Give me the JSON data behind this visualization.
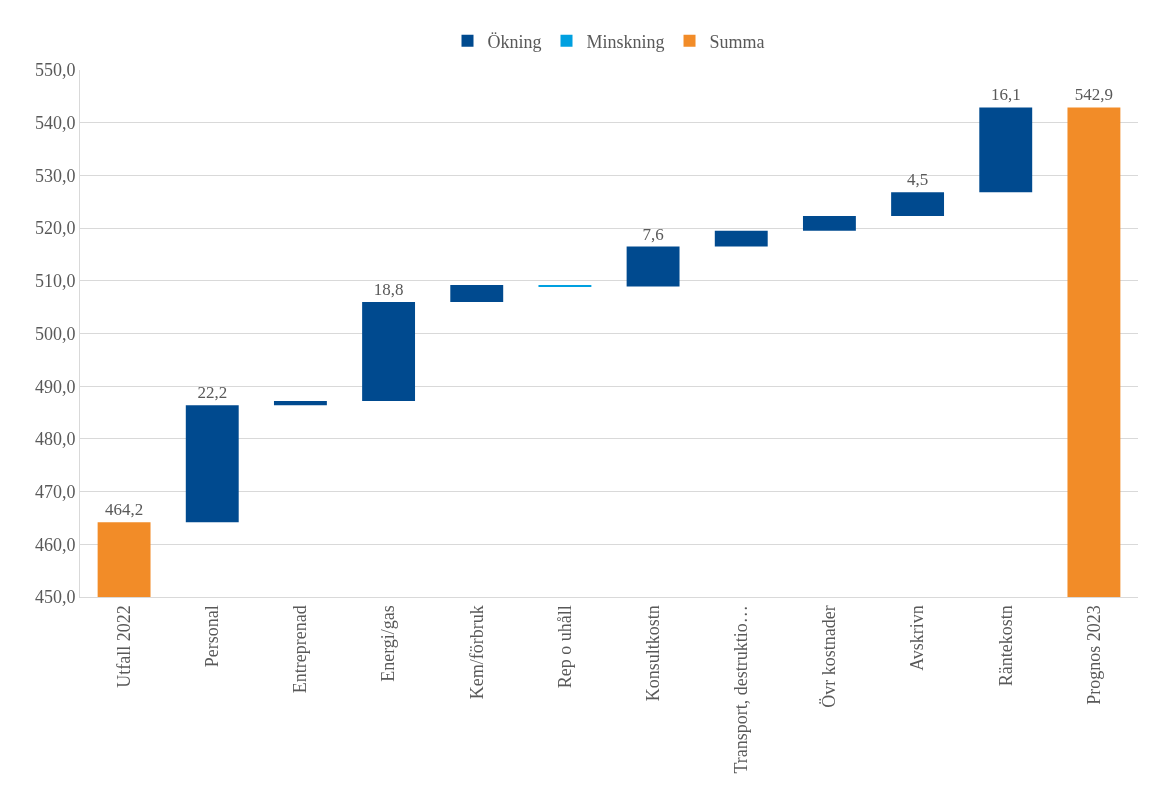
{
  "chart_data": {
    "type": "bar",
    "categories": [
      "Utfall 2022",
      "Personal",
      "Entreprenad",
      "Energi/gas",
      "Kem/förbruk",
      "Rep o uhåll",
      "Konsultkostn",
      "Transport, destruktio…",
      "Övr kostnader",
      "Avskrivn",
      "Räntekostn",
      "Prognos 2023"
    ],
    "series": [
      {
        "name": "Ökning",
        "color": "#004a8f",
        "base": [
          null,
          464.2,
          486.4,
          487.2,
          506.0,
          null,
          508.9,
          516.5,
          519.5,
          522.3,
          526.8,
          null
        ],
        "values": [
          null,
          22.2,
          0.8,
          18.8,
          3.2,
          null,
          7.6,
          3.0,
          2.8,
          4.5,
          16.1,
          null
        ],
        "value_labels": [
          null,
          "22,2",
          null,
          "18,8",
          null,
          null,
          "7,6",
          null,
          null,
          "4,5",
          "16,1",
          null
        ]
      },
      {
        "name": "Minskning",
        "color": "#00a0e0",
        "base": [
          null,
          null,
          null,
          null,
          null,
          509.2,
          null,
          null,
          null,
          null,
          null,
          null
        ],
        "values": [
          null,
          null,
          null,
          null,
          null,
          -0.3,
          null,
          null,
          null,
          null,
          null,
          null
        ]
      },
      {
        "name": "Summa",
        "color": "#f28c28",
        "values": [
          464.2,
          null,
          null,
          null,
          null,
          null,
          null,
          null,
          null,
          null,
          null,
          542.9
        ],
        "value_labels": [
          "464,2",
          null,
          null,
          null,
          null,
          null,
          null,
          null,
          null,
          null,
          null,
          "542,9"
        ]
      }
    ],
    "ylim": [
      450,
      550
    ],
    "yticks": [
      {
        "value": 450,
        "label": "450,0"
      },
      {
        "value": 460,
        "label": "460,0"
      },
      {
        "value": 470,
        "label": "470,0"
      },
      {
        "value": 480,
        "label": "480,0"
      },
      {
        "value": 490,
        "label": "490,0"
      },
      {
        "value": 500,
        "label": "500,0"
      },
      {
        "value": 510,
        "label": "510,0"
      },
      {
        "value": 520,
        "label": "520,0"
      },
      {
        "value": 530,
        "label": "530,0"
      },
      {
        "value": 540,
        "label": "540,0"
      },
      {
        "value": 550,
        "label": "550,0"
      }
    ],
    "grid": "y",
    "legend": "top"
  }
}
